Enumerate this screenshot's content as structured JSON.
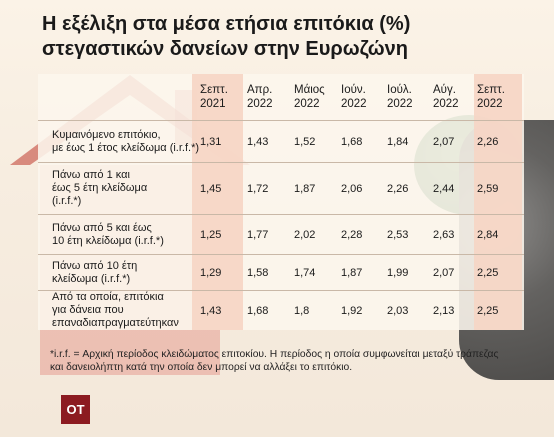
{
  "title": {
    "line1": "Η εξέλιξη στα μέσα ετήσια επιτόκια (%)",
    "line2": "στεγαστικών δανείων στην Ευρωζώνη"
  },
  "headers": [
    [
      "Σεπτ.",
      "2021"
    ],
    [
      "Απρ.",
      "2022"
    ],
    [
      "Μάιος",
      "2022"
    ],
    [
      "Ιούν.",
      "2022"
    ],
    [
      "Ιούλ.",
      "2022"
    ],
    [
      "Αύγ.",
      "2022"
    ],
    [
      "Σεπτ.",
      "2022"
    ]
  ],
  "rows": [
    {
      "label": [
        "Κυμαινόμενο επιτόκιο,",
        "με έως 1 έτος κλείδωμα (i.r.f.*)"
      ],
      "values": [
        "1,31",
        "1,43",
        "1,52",
        "1,68",
        "1,84",
        "2,07",
        "2,26"
      ]
    },
    {
      "label": [
        "Πάνω από 1 και",
        "έως 5 έτη κλείδωμα",
        "(i.r.f.*)"
      ],
      "values": [
        "1,45",
        "1,72",
        "1,87",
        "2,06",
        "2,26",
        "2,44",
        "2,59"
      ]
    },
    {
      "label": [
        "Πάνω από 5 και έως",
        "10 έτη κλείδωμα (i.r.f.*)"
      ],
      "values": [
        "1,25",
        "1,77",
        "2,02",
        "2,28",
        "2,53",
        "2,63",
        "2,84"
      ]
    },
    {
      "label": [
        "Πάνω από 10 έτη",
        "κλείδωμα (i.r.f.*)"
      ],
      "values": [
        "1,29",
        "1,58",
        "1,74",
        "1,87",
        "1,99",
        "2,07",
        "2,25"
      ]
    },
    {
      "label": [
        "Από τα οποία, επιτόκια",
        "για δάνεια που",
        "επαναδιαπραγματεύτηκαν"
      ],
      "values": [
        "1,43",
        "1,68",
        "1,8",
        "1,92",
        "2,03",
        "2,13",
        "2,25"
      ]
    }
  ],
  "note": {
    "line1": "*i.r.f. = Αρχική περίοδος κλειδώματος επιτοκίου. Η περίοδος η οποία συμφωνείται μεταξύ τράπεζας",
    "line2": "και δανειολήπτη κατά την οποία δεν μπορεί να αλλάξει το επιτόκιο."
  },
  "logo": "OT",
  "colors": {
    "highlight_column": "#f6d5c4",
    "logo_bg": "#8c1b21",
    "house_red": "#b3342f"
  }
}
